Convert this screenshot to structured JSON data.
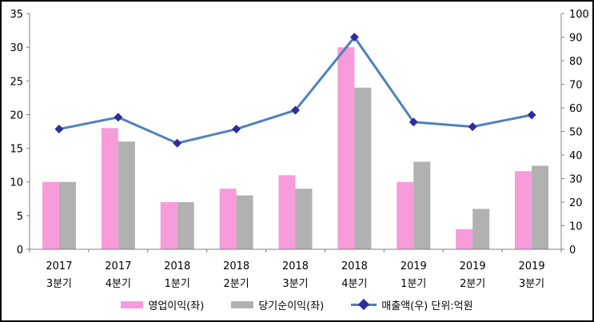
{
  "window": {
    "background": "#ffffff",
    "border_color": "#000000"
  },
  "chart_data": {
    "type": "combo_bar_line",
    "title": "",
    "xlabel": "",
    "ylabel_left": "",
    "ylabel_right": "",
    "grid": false,
    "legend_position": "bottom",
    "axis_color": "#808080",
    "text_color": "#000000",
    "categories": [
      "2017 3분기",
      "2017 4분기",
      "2018 1분기",
      "2018 2분기",
      "2018 3분기",
      "2018 4분기",
      "2019 1분기",
      "2019 2분기",
      "2019 3분기"
    ],
    "series": [
      {
        "name": "영업이익(좌)",
        "type": "bar",
        "axis": "left",
        "color": "#F79BDB",
        "values": [
          10,
          18,
          7,
          9,
          11,
          30,
          10,
          3,
          11.6
        ]
      },
      {
        "name": "당기순이익(좌)",
        "type": "bar",
        "axis": "left",
        "color": "#B1B1B1",
        "values": [
          10,
          16,
          7,
          8,
          9,
          24,
          13,
          6,
          12.4
        ]
      },
      {
        "name": "매출액(우) 단위:억원",
        "type": "line",
        "axis": "right",
        "color": "#4F81BD",
        "marker": "diamond",
        "marker_color": "#2E2C9F",
        "values": [
          51,
          56,
          45,
          51,
          59,
          90,
          54,
          52,
          57
        ]
      }
    ],
    "left_axis": {
      "min": 0,
      "max": 35,
      "ticks": [
        0,
        5,
        10,
        15,
        20,
        25,
        30,
        35
      ]
    },
    "right_axis": {
      "min": 0,
      "max": 100,
      "ticks": [
        0,
        10,
        20,
        30,
        40,
        50,
        60,
        70,
        80,
        90,
        100
      ]
    }
  }
}
